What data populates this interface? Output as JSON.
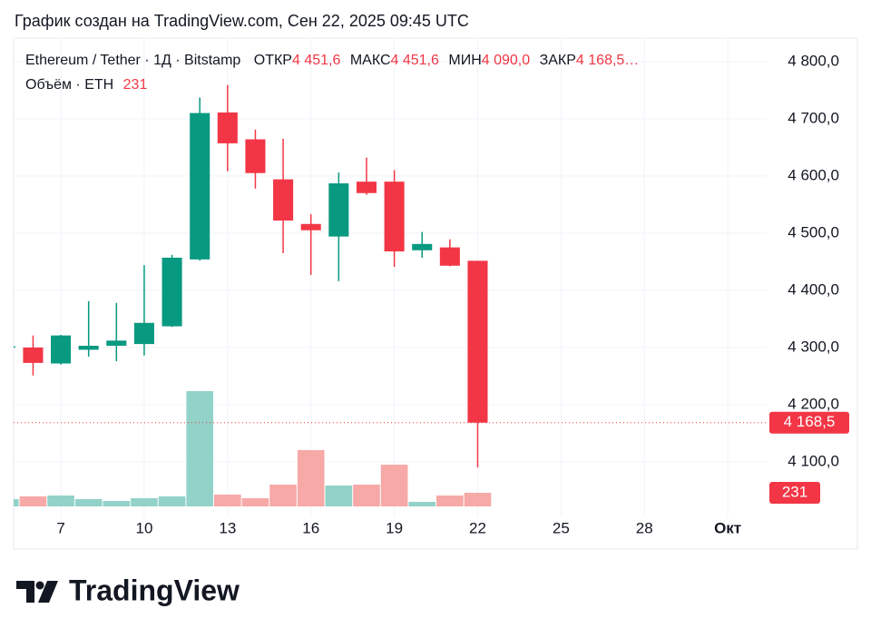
{
  "chart_data": {
    "type": "candlestick",
    "header": "График создан на TradingView.com, Сен 22, 2025 09:45 UTC",
    "legend": {
      "symbol": "Ethereum / Tether · 1Д · Bitstamp",
      "open_caption": "ОТКР",
      "open_text": "4 451,6",
      "high_caption": "МАКС",
      "high_text": "4 451,6",
      "low_caption": "МИН",
      "low_text": "4 090,0",
      "close_caption": "ЗАКР",
      "close_text": "4 168,5…",
      "volume_caption": "Объём · ETH",
      "volume_text": "231"
    },
    "x": [
      5,
      6,
      7,
      8,
      9,
      10,
      11,
      12,
      13,
      14,
      15,
      16,
      17,
      18,
      19,
      20,
      21,
      22
    ],
    "open": [
      4300,
      4300,
      4272,
      4296,
      4303,
      4306,
      4337,
      4454,
      4711,
      4664,
      4594,
      4516,
      4494,
      4590,
      4590,
      4470,
      4475,
      4451.6
    ],
    "high": [
      4303,
      4321,
      4322,
      4381,
      4378,
      4444,
      4462,
      4737,
      4759,
      4681,
      4665,
      4533,
      4606,
      4632,
      4610,
      4502,
      4489,
      4451.6
    ],
    "low": [
      4299,
      4251,
      4270,
      4284,
      4276,
      4286,
      4336,
      4452,
      4608,
      4578,
      4465,
      4427,
      4416,
      4567,
      4441,
      4457,
      4442,
      4090
    ],
    "close": [
      4302,
      4273,
      4321,
      4303,
      4312,
      4343,
      4457,
      4710,
      4657,
      4605,
      4522,
      4505,
      4587,
      4570,
      4468,
      4481,
      4443,
      4168.5
    ],
    "volume": [
      123,
      170,
      185,
      123,
      92,
      139,
      170,
      1956,
      200,
      139,
      370,
      955,
      354,
      370,
      708,
      77,
      185,
      231
    ],
    "up_color": "#089981",
    "down_color": "#f23645",
    "up_volume_color": "#92d2c9",
    "down_volume_color": "#f7a9a7",
    "close_label": "4 168,5",
    "volume_label": "231",
    "xlim": [
      5.3,
      32.4
    ],
    "xticks": [
      7,
      10,
      13,
      16,
      19,
      22,
      25,
      28,
      {
        "value": 31,
        "label": "Окт"
      }
    ],
    "ylim": [
      4003,
      4841
    ],
    "yticks": [
      {
        "value": 4100,
        "label": "4 100,0"
      },
      {
        "value": 4200,
        "label": "4 200,0"
      },
      {
        "value": 4300,
        "label": "4 300,0"
      },
      {
        "value": 4400,
        "label": "4 400,0"
      },
      {
        "value": 4500,
        "label": "4 500,0"
      },
      {
        "value": 4600,
        "label": "4 600,0"
      },
      {
        "value": 4700,
        "label": "4 700,0"
      },
      {
        "value": 4800,
        "label": "4 800,0"
      }
    ],
    "grid": true,
    "brand": "TradingView"
  }
}
